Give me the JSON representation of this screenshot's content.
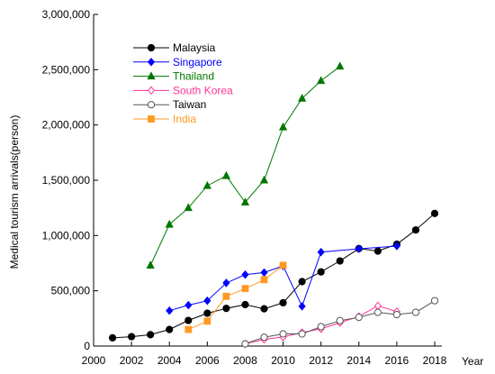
{
  "chart_data": {
    "type": "line",
    "title": "",
    "xlabel": "Year",
    "ylabel": "Medical tourism arrivals(person)",
    "xlim": [
      2000,
      2018
    ],
    "ylim": [
      0,
      3000000
    ],
    "x_ticks": [
      2000,
      2002,
      2004,
      2006,
      2008,
      2010,
      2012,
      2014,
      2016,
      2018
    ],
    "y_ticks": [
      0,
      500000,
      1000000,
      1500000,
      2000000,
      2500000,
      3000000
    ],
    "x_tick_labels": [
      "2000",
      "2002",
      "2004",
      "2006",
      "2008",
      "2010",
      "2012",
      "2014",
      "2016",
      "2018"
    ],
    "y_tick_labels": [
      "0",
      "500,000",
      "1,000,000",
      "1,500,000",
      "2,000,000",
      "2,500,000",
      "3,000,000"
    ],
    "grid": false,
    "legend_position": "top-left",
    "series": [
      {
        "name": "Malaysia",
        "color": "#000000",
        "marker": "filled-circle",
        "points": [
          [
            2001,
            75000
          ],
          [
            2002,
            85000
          ],
          [
            2003,
            103000
          ],
          [
            2004,
            150000
          ],
          [
            2005,
            232000
          ],
          [
            2006,
            297000
          ],
          [
            2007,
            341000
          ],
          [
            2008,
            375000
          ],
          [
            2009,
            337000
          ],
          [
            2010,
            392000
          ],
          [
            2011,
            583000
          ],
          [
            2012,
            671000
          ],
          [
            2013,
            770000
          ],
          [
            2014,
            882000
          ],
          [
            2015,
            859000
          ],
          [
            2016,
            921000
          ],
          [
            2017,
            1050000
          ],
          [
            2018,
            1200000
          ]
        ]
      },
      {
        "name": "Singapore",
        "color": "#0000ff",
        "marker": "filled-diamond",
        "points": [
          [
            2004,
            320000
          ],
          [
            2005,
            370000
          ],
          [
            2006,
            410000
          ],
          [
            2007,
            571000
          ],
          [
            2008,
            646000
          ],
          [
            2009,
            665000
          ],
          [
            2010,
            725000
          ],
          [
            2011,
            360000
          ],
          [
            2012,
            850000
          ],
          [
            2014,
            880000
          ],
          [
            2016,
            905000
          ]
        ]
      },
      {
        "name": "Thailand",
        "color": "#007700",
        "marker": "filled-triangle",
        "points": [
          [
            2003,
            730000
          ],
          [
            2004,
            1100000
          ],
          [
            2005,
            1250000
          ],
          [
            2006,
            1450000
          ],
          [
            2007,
            1540000
          ],
          [
            2008,
            1300000
          ],
          [
            2009,
            1500000
          ],
          [
            2010,
            1980000
          ],
          [
            2011,
            2240000
          ],
          [
            2012,
            2400000
          ],
          [
            2013,
            2530000
          ]
        ]
      },
      {
        "name": "South Korea",
        "color": "#ff3399",
        "marker": "open-diamond",
        "points": [
          [
            2008,
            20000
          ],
          [
            2009,
            60000
          ],
          [
            2010,
            82000
          ],
          [
            2011,
            122000
          ],
          [
            2012,
            156000
          ],
          [
            2013,
            211000
          ],
          [
            2014,
            267000
          ],
          [
            2015,
            364000
          ],
          [
            2016,
            312000
          ]
        ]
      },
      {
        "name": "Taiwan",
        "color": "#555555",
        "marker": "open-circle",
        "points": [
          [
            2008,
            20000
          ],
          [
            2009,
            80000
          ],
          [
            2010,
            110000
          ],
          [
            2011,
            110000
          ],
          [
            2012,
            175000
          ],
          [
            2013,
            230000
          ],
          [
            2014,
            260000
          ],
          [
            2015,
            305000
          ],
          [
            2016,
            285000
          ],
          [
            2017,
            305000
          ],
          [
            2018,
            410000
          ]
        ]
      },
      {
        "name": "India",
        "color": "#ff9922",
        "marker": "filled-square",
        "points": [
          [
            2005,
            150000
          ],
          [
            2006,
            225000
          ],
          [
            2007,
            450000
          ],
          [
            2008,
            520000
          ],
          [
            2009,
            600000
          ],
          [
            2010,
            730000
          ]
        ]
      }
    ]
  }
}
